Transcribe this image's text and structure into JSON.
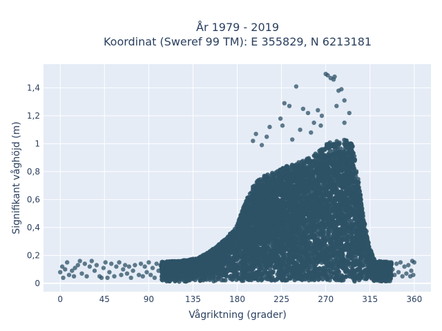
{
  "chart_data": {
    "type": "scatter",
    "title_line1": "År 1979 - 2019",
    "title_line2": "Koordinat (Sweref 99 TM): E 355829, N 6213181",
    "xlabel": "Vågriktning (grader)",
    "ylabel": "Signifikant våghöjd (m)",
    "xlim": [
      -17,
      377
    ],
    "ylim": [
      -0.06,
      1.57
    ],
    "x_ticks": [
      0,
      45,
      90,
      135,
      180,
      225,
      270,
      315,
      360
    ],
    "x_tick_labels": [
      "0",
      "45",
      "90",
      "135",
      "180",
      "225",
      "270",
      "315",
      "360"
    ],
    "y_ticks": [
      0,
      0.2,
      0.4,
      0.6,
      0.8,
      1.0,
      1.2,
      1.4
    ],
    "y_tick_labels": [
      "0",
      "0,2",
      "0,4",
      "0,6",
      "0,8",
      "1",
      "1,2",
      "1,4"
    ],
    "grid": true,
    "marker_color": "#2e5266",
    "plot_background": "#e5ecf6",
    "envelope": [
      [
        0,
        0.16
      ],
      [
        45,
        0.15
      ],
      [
        90,
        0.15
      ],
      [
        120,
        0.16
      ],
      [
        140,
        0.18
      ],
      [
        150,
        0.22
      ],
      [
        160,
        0.27
      ],
      [
        170,
        0.33
      ],
      [
        180,
        0.42
      ],
      [
        190,
        0.62
      ],
      [
        200,
        0.74
      ],
      [
        210,
        0.78
      ],
      [
        220,
        0.8
      ],
      [
        230,
        0.84
      ],
      [
        240,
        0.86
      ],
      [
        250,
        0.89
      ],
      [
        260,
        0.93
      ],
      [
        270,
        1.0
      ],
      [
        280,
        1.02
      ],
      [
        290,
        1.03
      ],
      [
        297,
        1.0
      ],
      [
        302,
        0.8
      ],
      [
        306,
        0.6
      ],
      [
        310,
        0.42
      ],
      [
        315,
        0.25
      ],
      [
        320,
        0.16
      ],
      [
        340,
        0.15
      ],
      [
        360,
        0.14
      ]
    ],
    "outliers": [
      [
        270,
        1.5
      ],
      [
        272,
        1.49
      ],
      [
        275,
        1.47
      ],
      [
        278,
        1.46
      ],
      [
        279,
        1.48
      ],
      [
        283,
        1.38
      ],
      [
        286,
        1.39
      ],
      [
        240,
        1.41
      ],
      [
        228,
        1.29
      ],
      [
        233,
        1.27
      ],
      [
        247,
        1.25
      ],
      [
        252,
        1.22
      ],
      [
        262,
        1.24
      ],
      [
        266,
        1.2
      ],
      [
        281,
        1.27
      ],
      [
        289,
        1.31
      ],
      [
        294,
        1.22
      ],
      [
        224,
        1.18
      ],
      [
        226,
        1.13
      ],
      [
        213,
        1.12
      ],
      [
        210,
        1.05
      ],
      [
        199,
        1.07
      ],
      [
        196,
        1.02
      ],
      [
        205,
        0.99
      ],
      [
        258,
        1.15
      ],
      [
        265,
        1.13
      ],
      [
        255,
        1.08
      ],
      [
        244,
        1.1
      ],
      [
        236,
        1.03
      ],
      [
        289,
        1.15
      ]
    ],
    "low_band": [
      [
        0,
        0.08
      ],
      [
        2,
        0.12
      ],
      [
        3,
        0.04
      ],
      [
        5,
        0.1
      ],
      [
        7,
        0.15
      ],
      [
        9,
        0.06
      ],
      [
        12,
        0.09
      ],
      [
        14,
        0.05
      ],
      [
        15,
        0.11
      ],
      [
        18,
        0.13
      ],
      [
        20,
        0.16
      ],
      [
        22,
        0.07
      ],
      [
        25,
        0.14
      ],
      [
        27,
        0.05
      ],
      [
        30,
        0.12
      ],
      [
        32,
        0.16
      ],
      [
        35,
        0.09
      ],
      [
        37,
        0.13
      ],
      [
        40,
        0.05
      ],
      [
        42,
        0.04
      ],
      [
        44,
        0.11
      ],
      [
        46,
        0.15
      ],
      [
        48,
        0.04
      ],
      [
        50,
        0.08
      ],
      [
        52,
        0.14
      ],
      [
        55,
        0.05
      ],
      [
        57,
        0.12
      ],
      [
        60,
        0.15
      ],
      [
        62,
        0.06
      ],
      [
        64,
        0.1
      ],
      [
        66,
        0.13
      ],
      [
        68,
        0.07
      ],
      [
        70,
        0.12
      ],
      [
        72,
        0.04
      ],
      [
        74,
        0.09
      ],
      [
        76,
        0.13
      ],
      [
        80,
        0.06
      ],
      [
        82,
        0.14
      ],
      [
        84,
        0.05
      ],
      [
        86,
        0.12
      ],
      [
        88,
        0.08
      ],
      [
        90,
        0.15
      ],
      [
        92,
        0.06
      ],
      [
        94,
        0.11
      ],
      [
        96,
        0.04
      ],
      [
        98,
        0.14
      ],
      [
        100,
        0.09
      ],
      [
        102,
        0.13
      ],
      [
        338,
        0.1
      ],
      [
        340,
        0.06
      ],
      [
        342,
        0.14
      ],
      [
        344,
        0.08
      ],
      [
        346,
        0.15
      ],
      [
        348,
        0.05
      ],
      [
        350,
        0.12
      ],
      [
        352,
        0.07
      ],
      [
        354,
        0.13
      ],
      [
        356,
        0.05
      ],
      [
        357,
        0.09
      ],
      [
        358,
        0.16
      ],
      [
        359,
        0.06
      ],
      [
        360,
        0.15
      ]
    ]
  }
}
